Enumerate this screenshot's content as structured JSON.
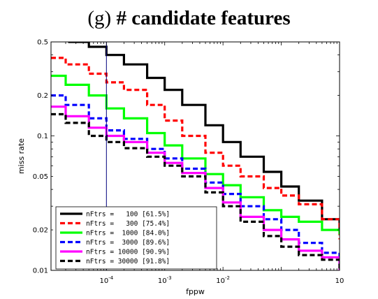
{
  "panel": {
    "letter": "(g)",
    "title": "# candidate features"
  },
  "chart_data": {
    "type": "line",
    "title": "(g) # candidate features",
    "xlabel": "fppw",
    "ylabel": "miss rate",
    "xscale": "log",
    "yscale": "log",
    "xlim": [
      1.12e-05,
      1
    ],
    "ylim": [
      0.01,
      0.5
    ],
    "grid": false,
    "legend_position": "lower-left",
    "x_ticks": [
      {
        "value": 0.0001,
        "base": "10",
        "exp": "-4"
      },
      {
        "value": 0.001,
        "base": "10",
        "exp": "-3"
      },
      {
        "value": 0.01,
        "base": "10",
        "exp": "-2"
      },
      {
        "value": 1,
        "base": "10",
        "exp": ""
      }
    ],
    "y_ticks": [
      {
        "value": 0.5,
        "label": "0.5"
      },
      {
        "value": 0.2,
        "label": "0.2"
      },
      {
        "value": 0.1,
        "label": "0.1"
      },
      {
        "value": 0.05,
        "label": "0.05"
      },
      {
        "value": 0.02,
        "label": "0.02"
      },
      {
        "value": 0.01,
        "label": "0.01"
      }
    ],
    "reference_line_x": 0.0001,
    "reference_line_color": "#00007f",
    "series": [
      {
        "name": "nFtrs =   100 [61.5%]",
        "color": "#000000",
        "dash": "",
        "x": [
          2.2e-05,
          5e-05,
          0.0001,
          0.0002,
          0.0005,
          0.001,
          0.002,
          0.005,
          0.01,
          0.02,
          0.05,
          0.1,
          0.2,
          0.5,
          1
        ],
        "y": [
          0.5,
          0.46,
          0.4,
          0.34,
          0.27,
          0.22,
          0.17,
          0.12,
          0.09,
          0.07,
          0.054,
          0.042,
          0.033,
          0.024,
          0.0195
        ]
      },
      {
        "name": "nFtrs =   300 [75.4%]",
        "color": "#ff0000",
        "dash": "7,4",
        "x": [
          1.12e-05,
          2e-05,
          5e-05,
          0.0001,
          0.0002,
          0.0005,
          0.001,
          0.002,
          0.005,
          0.01,
          0.02,
          0.05,
          0.1,
          0.2,
          0.5,
          1
        ],
        "y": [
          0.38,
          0.34,
          0.29,
          0.25,
          0.22,
          0.17,
          0.13,
          0.1,
          0.075,
          0.06,
          0.05,
          0.041,
          0.036,
          0.031,
          0.024,
          0.017
        ]
      },
      {
        "name": "nFtrs =  1000 [84.0%]",
        "color": "#00ff00",
        "dash": "",
        "x": [
          1.12e-05,
          2e-05,
          5e-05,
          0.0001,
          0.0002,
          0.0005,
          0.001,
          0.002,
          0.005,
          0.01,
          0.02,
          0.05,
          0.1,
          0.2,
          0.5,
          1
        ],
        "y": [
          0.28,
          0.24,
          0.2,
          0.16,
          0.135,
          0.105,
          0.085,
          0.068,
          0.052,
          0.043,
          0.035,
          0.028,
          0.025,
          0.023,
          0.02,
          0.0185
        ]
      },
      {
        "name": "nFtrs =  3000 [89.6%]",
        "color": "#0000ff",
        "dash": "7,4",
        "x": [
          1.12e-05,
          2e-05,
          5e-05,
          0.0001,
          0.0002,
          0.0005,
          0.001,
          0.002,
          0.005,
          0.01,
          0.02,
          0.05,
          0.1,
          0.2,
          0.5,
          1
        ],
        "y": [
          0.2,
          0.17,
          0.135,
          0.11,
          0.095,
          0.08,
          0.068,
          0.057,
          0.045,
          0.037,
          0.03,
          0.024,
          0.02,
          0.016,
          0.0135,
          0.011
        ]
      },
      {
        "name": "nFtrs = 10000 [90.9%]",
        "color": "#ff00ff",
        "dash": "",
        "x": [
          1.12e-05,
          2e-05,
          5e-05,
          0.0001,
          0.0002,
          0.0005,
          0.001,
          0.002,
          0.005,
          0.01,
          0.02,
          0.05,
          0.1,
          0.2,
          0.5,
          1
        ],
        "y": [
          0.165,
          0.14,
          0.115,
          0.1,
          0.09,
          0.075,
          0.063,
          0.053,
          0.041,
          0.032,
          0.025,
          0.02,
          0.017,
          0.014,
          0.0125,
          0.0095
        ]
      },
      {
        "name": "nFtrs = 30000 [91.8%]",
        "color": "#000000",
        "dash": "7,4",
        "x": [
          1.12e-05,
          2e-05,
          5e-05,
          0.0001,
          0.0002,
          0.0005,
          0.001,
          0.002,
          0.005,
          0.01,
          0.02,
          0.05,
          0.1,
          0.2,
          0.5,
          1
        ],
        "y": [
          0.145,
          0.125,
          0.1,
          0.09,
          0.081,
          0.07,
          0.06,
          0.05,
          0.038,
          0.03,
          0.023,
          0.018,
          0.015,
          0.013,
          0.012,
          0.01
        ]
      }
    ]
  }
}
